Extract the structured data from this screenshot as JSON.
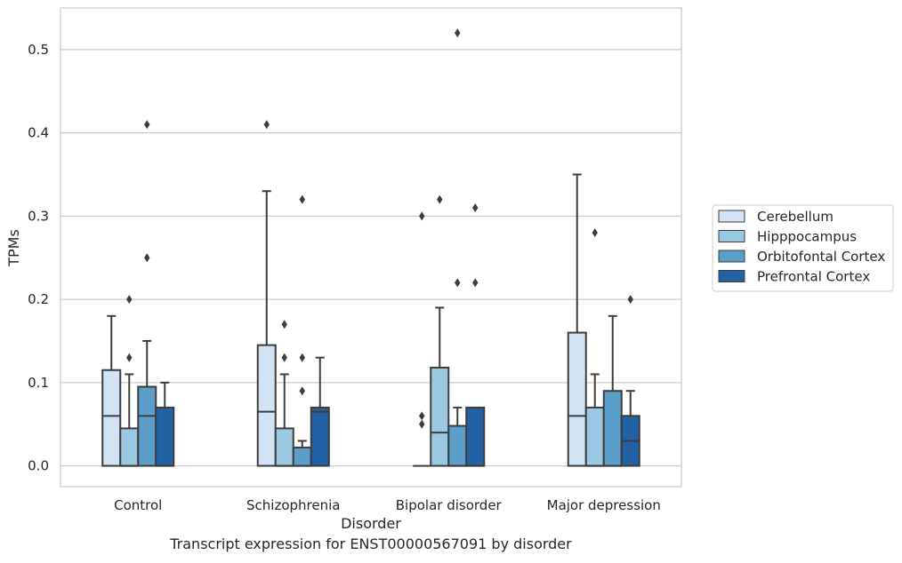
{
  "caption": "Transcript expression for ENST00000567091 by disorder",
  "chart_data": {
    "type": "box",
    "xlabel": "Disorder",
    "ylabel": "TPMs",
    "ylim": [
      -0.025,
      0.55
    ],
    "yticks": [
      0.0,
      0.1,
      0.2,
      0.3,
      0.4,
      0.5
    ],
    "ytick_labels": [
      "0.0",
      "0.1",
      "0.2",
      "0.3",
      "0.4",
      "0.5"
    ],
    "grid": "horizontal",
    "legend_position": "right",
    "categories": [
      "Control",
      "Schizophrenia",
      "Bipolar disorder",
      "Major depression"
    ],
    "series": [
      {
        "name": "Cerebellum",
        "color": "#d2e3f3",
        "boxes": [
          {
            "q1": 0.0,
            "median": 0.06,
            "q3": 0.115,
            "whisker_low": 0.0,
            "whisker_high": 0.18,
            "outliers": []
          },
          {
            "q1": 0.0,
            "median": 0.065,
            "q3": 0.145,
            "whisker_low": 0.0,
            "whisker_high": 0.33,
            "outliers": [
              0.41
            ]
          },
          {
            "q1": 0.0,
            "median": 0.0,
            "q3": 0.0,
            "whisker_low": 0.0,
            "whisker_high": 0.0,
            "outliers": [
              0.06,
              0.05,
              0.3
            ]
          },
          {
            "q1": 0.0,
            "median": 0.06,
            "q3": 0.16,
            "whisker_low": 0.0,
            "whisker_high": 0.35,
            "outliers": []
          }
        ]
      },
      {
        "name": "Hipppocampus",
        "color": "#9ac8e0",
        "boxes": [
          {
            "q1": 0.0,
            "median": 0.0,
            "q3": 0.045,
            "whisker_low": 0.0,
            "whisker_high": 0.11,
            "outliers": [
              0.13,
              0.2
            ]
          },
          {
            "q1": 0.0,
            "median": 0.0,
            "q3": 0.045,
            "whisker_low": 0.0,
            "whisker_high": 0.11,
            "outliers": [
              0.13,
              0.17
            ]
          },
          {
            "q1": 0.0,
            "median": 0.04,
            "q3": 0.118,
            "whisker_low": 0.0,
            "whisker_high": 0.19,
            "outliers": [
              0.32
            ]
          },
          {
            "q1": 0.0,
            "median": 0.0,
            "q3": 0.07,
            "whisker_low": 0.0,
            "whisker_high": 0.11,
            "outliers": [
              0.28
            ]
          }
        ]
      },
      {
        "name": "Orbitofontal Cortex",
        "color": "#5a9ec9",
        "boxes": [
          {
            "q1": 0.0,
            "median": 0.06,
            "q3": 0.095,
            "whisker_low": 0.0,
            "whisker_high": 0.15,
            "outliers": [
              0.25,
              0.41
            ]
          },
          {
            "q1": 0.0,
            "median": 0.0,
            "q3": 0.022,
            "whisker_low": 0.0,
            "whisker_high": 0.03,
            "outliers": [
              0.09,
              0.13,
              0.32
            ]
          },
          {
            "q1": 0.0,
            "median": 0.0,
            "q3": 0.048,
            "whisker_low": 0.0,
            "whisker_high": 0.07,
            "outliers": [
              0.22,
              0.52
            ]
          },
          {
            "q1": 0.0,
            "median": 0.0,
            "q3": 0.09,
            "whisker_low": 0.0,
            "whisker_high": 0.18,
            "outliers": []
          }
        ]
      },
      {
        "name": "Prefrontal Cortex",
        "color": "#2361a5",
        "boxes": [
          {
            "q1": 0.0,
            "median": 0.0,
            "q3": 0.07,
            "whisker_low": 0.0,
            "whisker_high": 0.1,
            "outliers": []
          },
          {
            "q1": 0.0,
            "median": 0.065,
            "q3": 0.07,
            "whisker_low": 0.0,
            "whisker_high": 0.13,
            "outliers": []
          },
          {
            "q1": 0.0,
            "median": 0.0,
            "q3": 0.07,
            "whisker_low": 0.0,
            "whisker_high": 0.07,
            "outliers": [
              0.22,
              0.31
            ]
          },
          {
            "q1": 0.0,
            "median": 0.03,
            "q3": 0.06,
            "whisker_low": 0.0,
            "whisker_high": 0.09,
            "outliers": [
              0.2
            ]
          }
        ]
      }
    ]
  }
}
